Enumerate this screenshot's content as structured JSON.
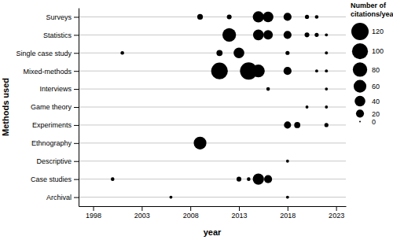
{
  "chart_data": {
    "type": "scatter",
    "x_label": "year",
    "y_label": "Methods used",
    "categories": [
      "Surveys",
      "Statistics",
      "Single case study",
      "Mixed-methods",
      "Interviews",
      "Game theory",
      "Experiments",
      "Ethnography",
      "Descriptive",
      "Case studies",
      "Archival"
    ],
    "x": [
      2009,
      2012,
      2015,
      2016,
      2018,
      2020,
      2021,
      2012,
      2015,
      2016,
      2018,
      2020,
      2021,
      2022,
      2001,
      2011,
      2013,
      2018,
      2022,
      2011,
      2014,
      2015,
      2018,
      2021,
      2022,
      2016,
      2022,
      2020,
      2022,
      2018,
      2019,
      2022,
      2009,
      2018,
      2000,
      2013,
      2014,
      2015,
      2016,
      2006,
      2018
    ],
    "y": [
      "Surveys",
      "Surveys",
      "Surveys",
      "Surveys",
      "Surveys",
      "Surveys",
      "Surveys",
      "Statistics",
      "Statistics",
      "Statistics",
      "Statistics",
      "Statistics",
      "Statistics",
      "Statistics",
      "Single case study",
      "Single case study",
      "Single case study",
      "Single case study",
      "Single case study",
      "Mixed-methods",
      "Mixed-methods",
      "Mixed-methods",
      "Mixed-methods",
      "Mixed-methods",
      "Mixed-methods",
      "Interviews",
      "Interviews",
      "Game theory",
      "Game theory",
      "Experiments",
      "Experiments",
      "Experiments",
      "Ethnography",
      "Descriptive",
      "Case studies",
      "Case studies",
      "Case studies",
      "Case studies",
      "Case studies",
      "Archival",
      "Archival"
    ],
    "size": [
      8,
      5,
      45,
      40,
      20,
      3,
      2,
      70,
      40,
      30,
      20,
      5,
      3,
      1,
      2,
      10,
      40,
      3,
      1,
      110,
      120,
      60,
      20,
      1,
      1,
      2,
      1,
      1,
      1,
      15,
      10,
      3,
      60,
      1,
      2,
      5,
      2,
      45,
      20,
      1,
      1
    ],
    "color": "#000000",
    "xlim": [
      1996.5,
      2024
    ],
    "xticks": [
      1998,
      2003,
      2008,
      2013,
      2018,
      2023
    ],
    "grid": true,
    "legend": "right",
    "size_legend": {
      "title": [
        "Number of",
        "citations/year"
      ],
      "values": [
        120,
        100,
        80,
        60,
        40,
        20,
        0
      ]
    }
  }
}
